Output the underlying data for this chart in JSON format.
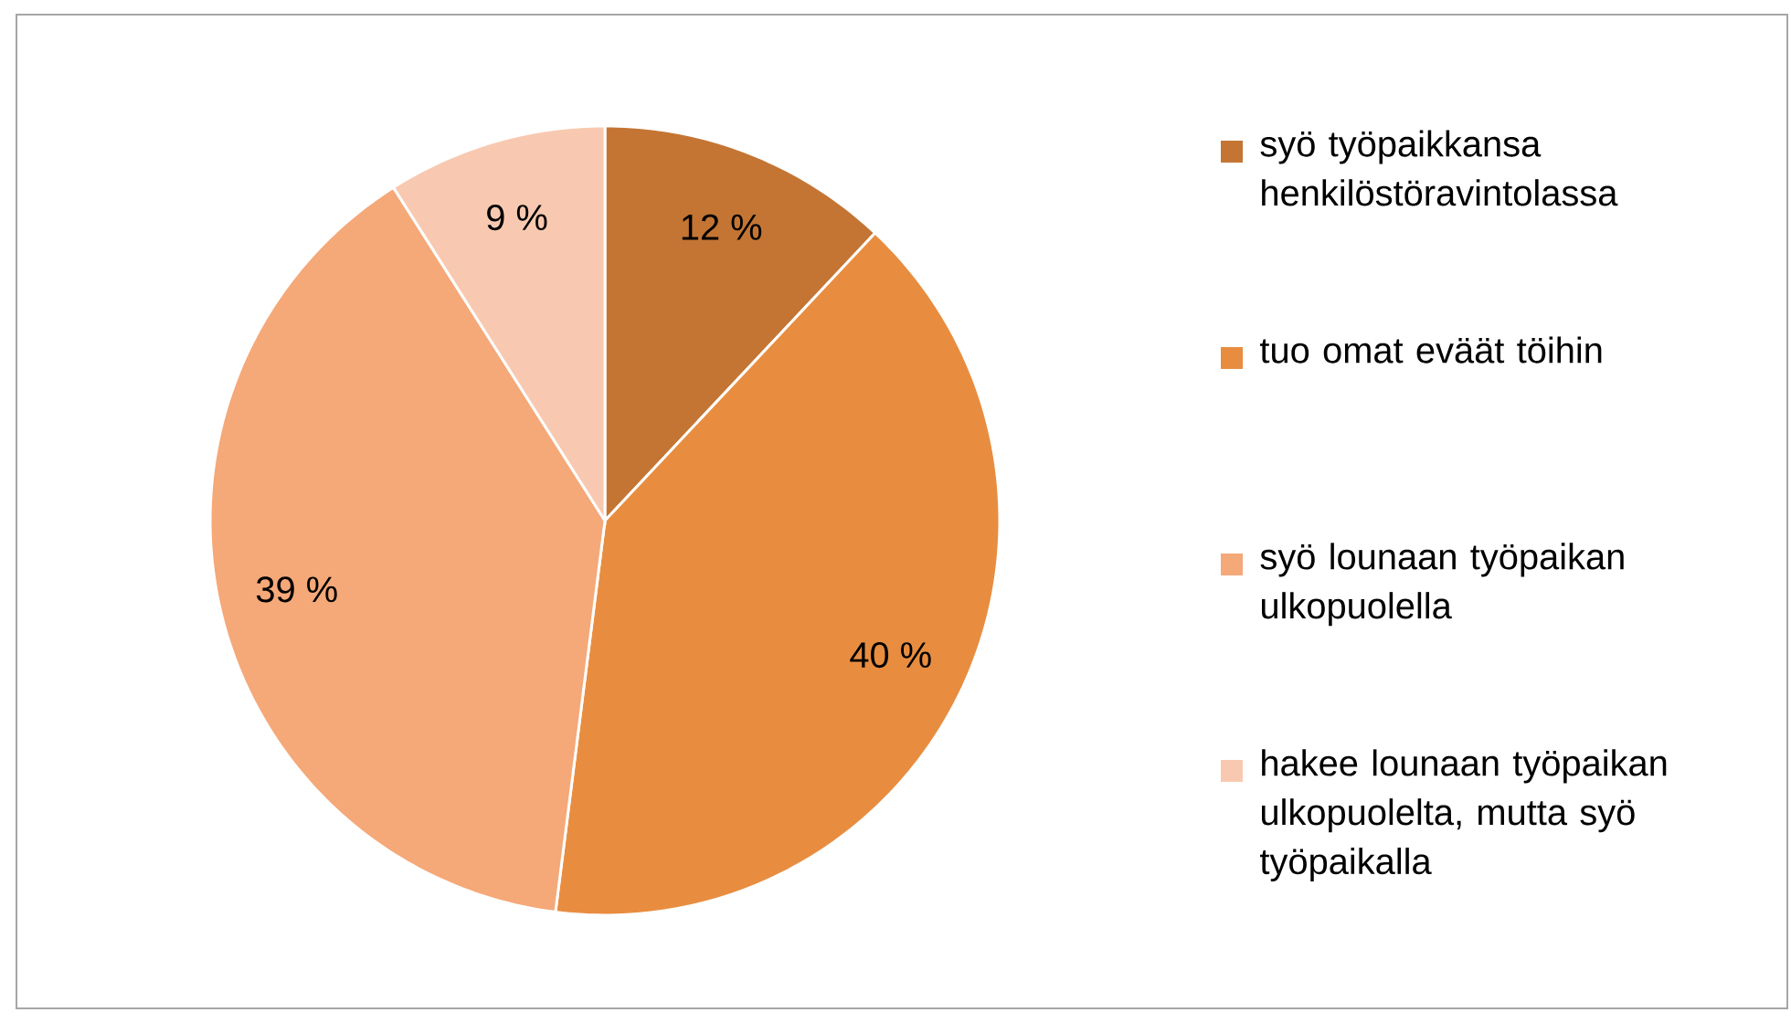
{
  "chart_data": {
    "type": "pie",
    "categories": [
      "syö työpaikkansa henkilöstöravintolassa",
      "tuo omat eväät töihin",
      "syö lounaan työpaikan ulkopuolella",
      "hakee lounaan työpaikan ulkopuolelta, mutta syö työpaikalla"
    ],
    "values": [
      12,
      40,
      39,
      9
    ],
    "colors": [
      "#c47533",
      "#e88d40",
      "#f5a878",
      "#f8c9b0"
    ],
    "value_labels": [
      "12 %",
      "40 %",
      "39 %",
      "9 %"
    ],
    "legend": "right"
  }
}
